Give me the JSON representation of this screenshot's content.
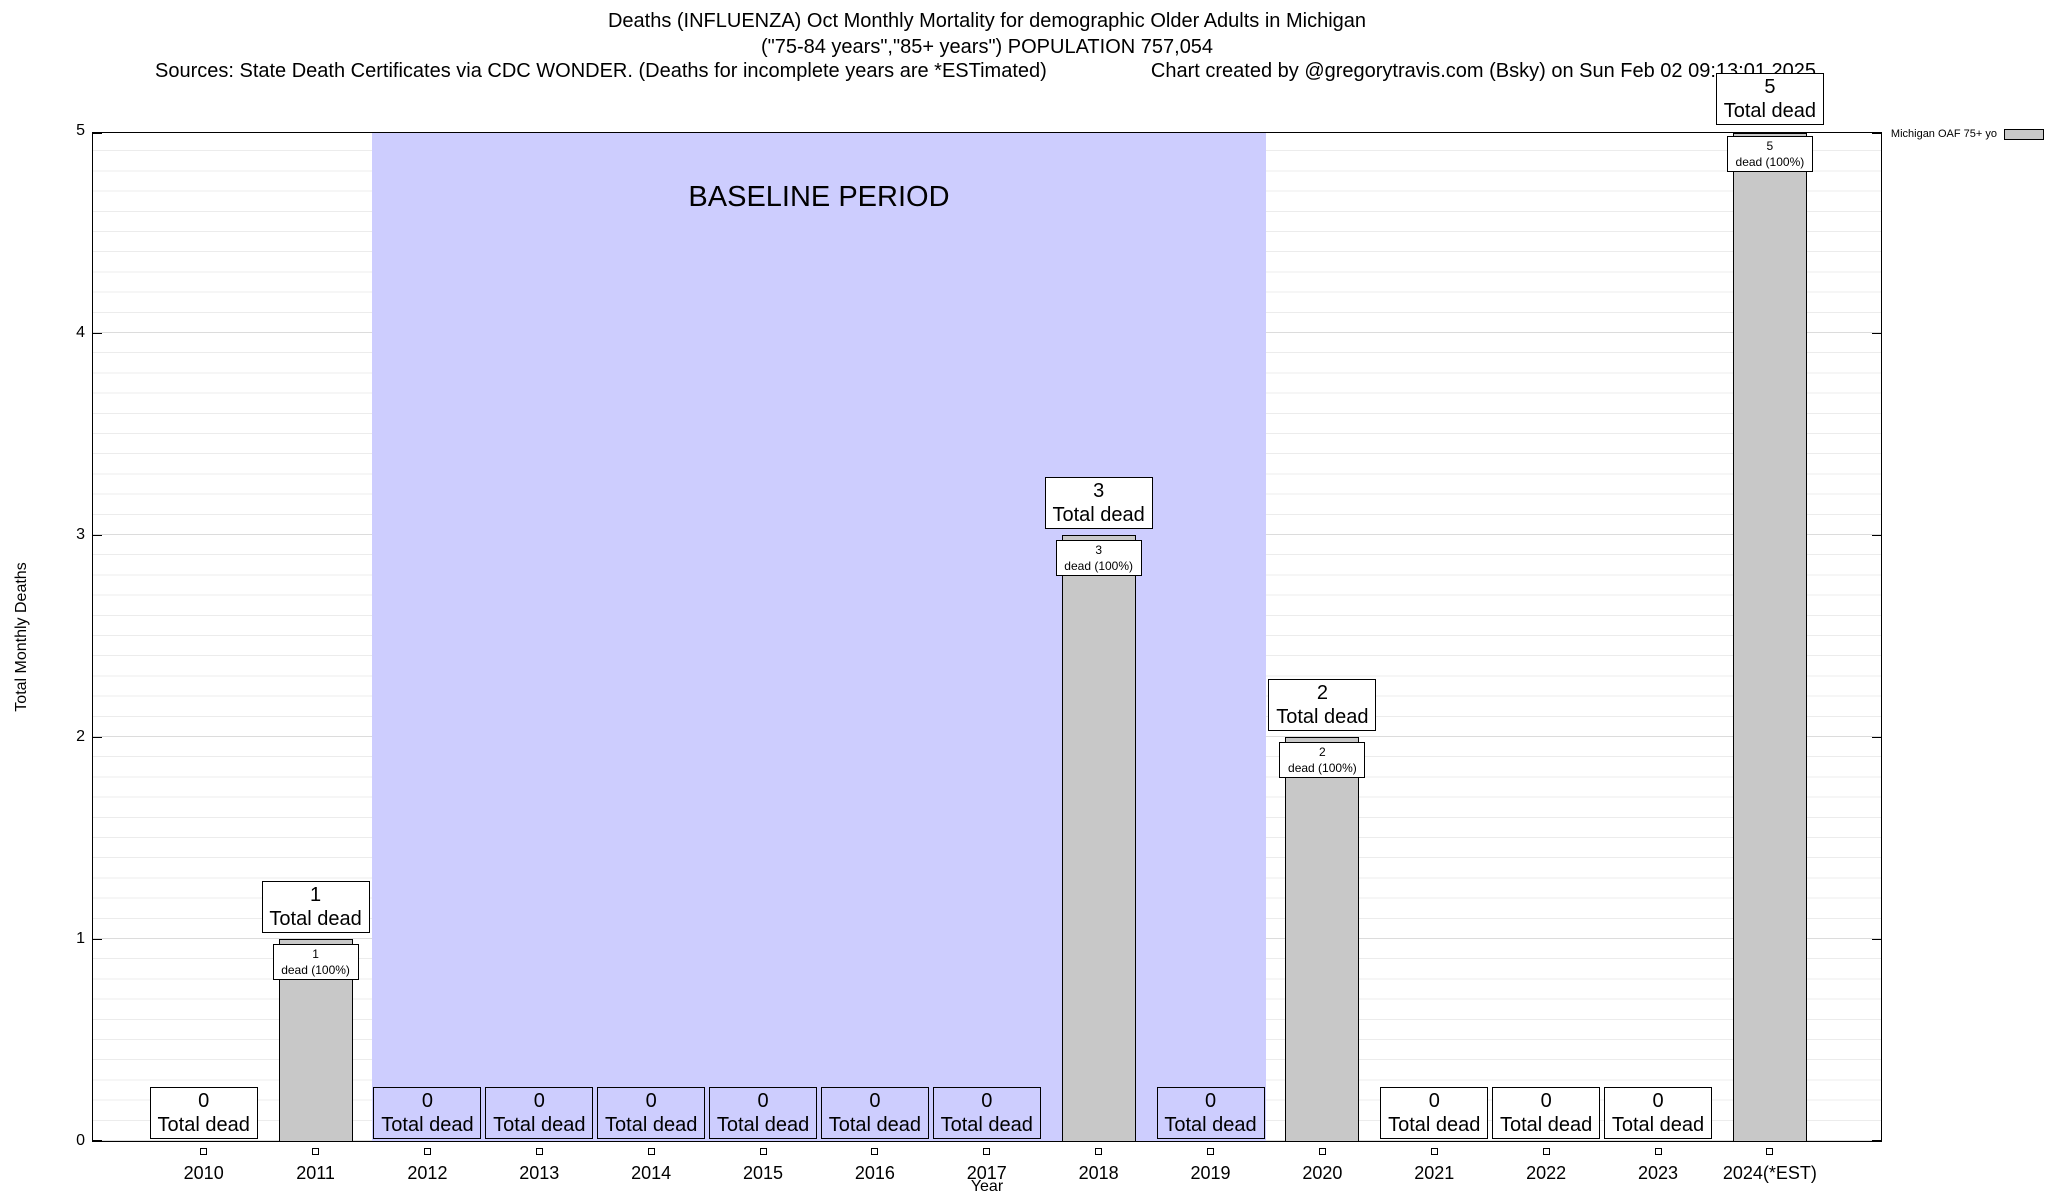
{
  "header": {
    "line1": "Deaths (INFLUENZA) Oct Monthly Mortality for demographic Older Adults in Michigan",
    "line2": "(\"75-84 years\",\"85+ years\") POPULATION 757,054",
    "sources": "Sources: State Death Certificates via CDC WONDER. (Deaths for incomplete years are *ESTimated)",
    "credit": "Chart created by @gregorytravis.com (Bsky) on Sun Feb 02 09:13:01 2025"
  },
  "chart_data": {
    "type": "bar",
    "title": "Deaths (INFLUENZA) Oct Monthly Mortality for demographic Older Adults in Michigan (\"75-84 years\",\"85+ years\") POPULATION 757,054",
    "xlabel": "Year",
    "ylabel": "Total Monthly Deaths",
    "ylim": [
      0,
      5
    ],
    "yticks": [
      0,
      1,
      2,
      3,
      4,
      5
    ],
    "minor_grid_step": 0.1,
    "grid": "on",
    "categories": [
      "2010",
      "2011",
      "2012",
      "2013",
      "2014",
      "2015",
      "2016",
      "2017",
      "2018",
      "2019",
      "2020",
      "2021",
      "2022",
      "2023",
      "2024(*EST)"
    ],
    "values": [
      0,
      1,
      0,
      0,
      0,
      0,
      0,
      0,
      3,
      0,
      2,
      0,
      0,
      0,
      5
    ],
    "legend": {
      "label": "Michigan OAF 75+ yo",
      "position": "top-right"
    },
    "bar_total_label_suffix": "Total dead",
    "bar_detail_label_suffix": "dead (100%)",
    "annotations": {
      "baseline_period": {
        "label": "BASELINE PERIOD",
        "from_category": "2012",
        "to_category": "2019"
      }
    },
    "colors": {
      "bar_fill": "#c8c8c8",
      "bar_border": "#000000",
      "baseline_fill": "#cdcdfe",
      "grid_minor": "#ececec",
      "grid_major": "#dcdcdc",
      "label_box_fill": "#ffffff"
    }
  }
}
